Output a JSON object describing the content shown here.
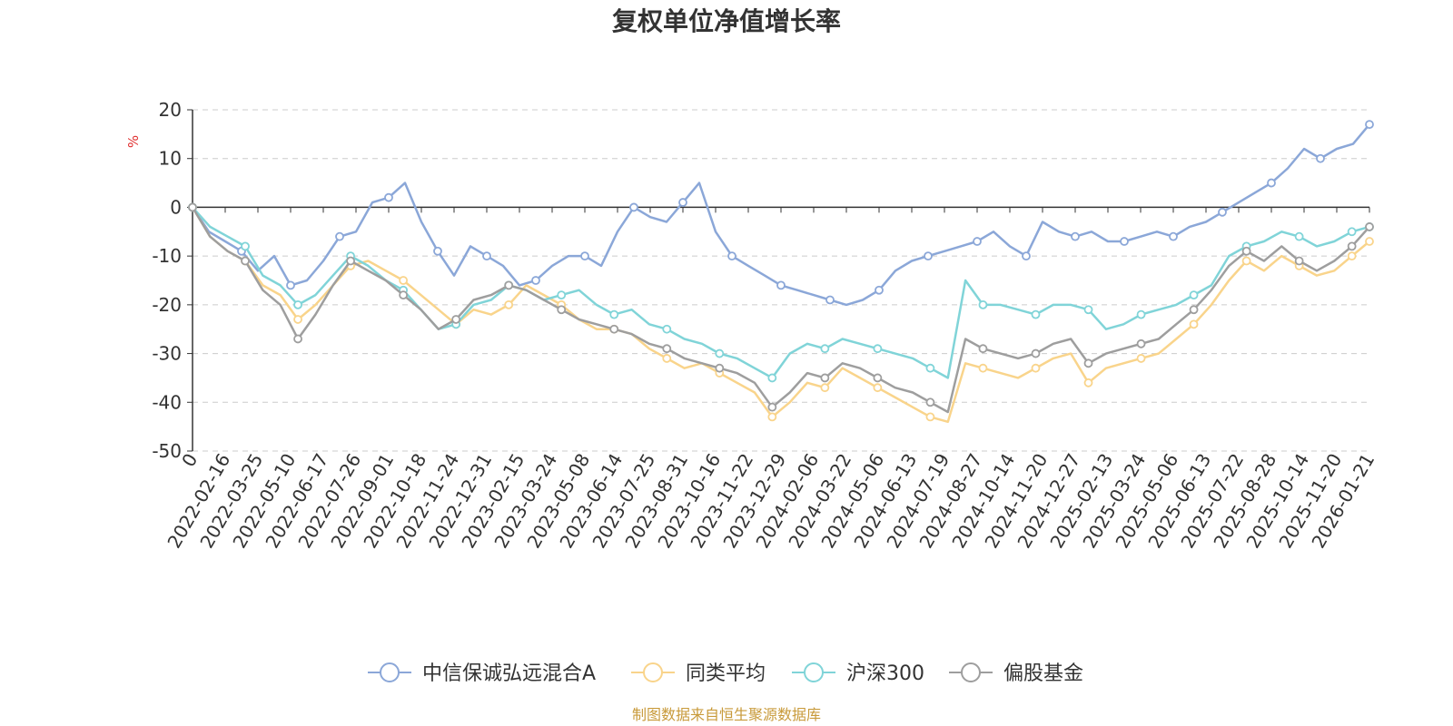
{
  "chart_data": {
    "type": "line",
    "title": "复权单位净值增长率",
    "ylabel": "%",
    "ylim": [
      -50,
      20
    ],
    "yticks": [
      20,
      10,
      0,
      -10,
      -20,
      -30,
      -40,
      -50
    ],
    "grid": true,
    "legend_position": "bottom-center",
    "source_note": "制图数据来自恒生聚源数据库",
    "x_tick_labels": [
      "0",
      "2022-02-16",
      "2022-03-25",
      "2022-05-10",
      "2022-06-17",
      "2022-07-26",
      "2022-09-01",
      "2022-10-18",
      "2022-11-24",
      "2022-12-31",
      "2023-02-15",
      "2023-03-24",
      "2023-05-08",
      "2023-06-14",
      "2023-07-25",
      "2023-08-31",
      "2023-10-16",
      "2023-11-22",
      "2023-12-29",
      "2024-02-06",
      "2024-03-22",
      "2024-05-06",
      "2024-06-13",
      "2024-07-19",
      "2024-08-27",
      "2024-10-14",
      "2024-11-20",
      "2024-12-27",
      "2025-02-13",
      "2025-03-24",
      "2025-05-06",
      "2025-06-13",
      "2025-07-22",
      "2025-08-28",
      "2025-10-14",
      "2025-11-20",
      "2026-01-21"
    ],
    "series": [
      {
        "name": "中信保诚弘远混合A",
        "color": "#8BA7D8",
        "values": [
          0,
          -5,
          -7,
          -9,
          -13,
          -10,
          -16,
          -15,
          -11,
          -6,
          -5,
          1,
          2,
          5,
          -3,
          -9,
          -14,
          -8,
          -10,
          -12,
          -16,
          -15,
          -12,
          -10,
          -10,
          -12,
          -5,
          0,
          -2,
          -3,
          1,
          5,
          -5,
          -10,
          -12,
          -14,
          -16,
          -17,
          -18,
          -19,
          -20,
          -19,
          -17,
          -13,
          -11,
          -10,
          -9,
          -8,
          -7,
          -5,
          -8,
          -10,
          -3,
          -5,
          -6,
          -5,
          -7,
          -7,
          -6,
          -5,
          -6,
          -4,
          -3,
          -1,
          1,
          3,
          5,
          8,
          12,
          10,
          12,
          13,
          17
        ]
      },
      {
        "name": "同类平均",
        "color": "#F9D48B",
        "values": [
          0,
          -6,
          -9,
          -11,
          -16,
          -18,
          -23,
          -20,
          -16,
          -12,
          -11,
          -13,
          -15,
          -18,
          -21,
          -24,
          -21,
          -22,
          -20,
          -16,
          -18,
          -20,
          -23,
          -25,
          -25,
          -26,
          -29,
          -31,
          -33,
          -32,
          -34,
          -36,
          -38,
          -43,
          -40,
          -36,
          -37,
          -33,
          -35,
          -37,
          -39,
          -41,
          -43,
          -44,
          -32,
          -33,
          -34,
          -35,
          -33,
          -31,
          -30,
          -36,
          -33,
          -32,
          -31,
          -30,
          -27,
          -24,
          -20,
          -15,
          -11,
          -13,
          -10,
          -12,
          -14,
          -13,
          -10,
          -7
        ]
      },
      {
        "name": "沪深300",
        "color": "#80D4D8",
        "values": [
          0,
          -4,
          -6,
          -8,
          -14,
          -16,
          -20,
          -18,
          -14,
          -10,
          -12,
          -15,
          -17,
          -21,
          -25,
          -24,
          -20,
          -19,
          -16,
          -17,
          -19,
          -18,
          -17,
          -20,
          -22,
          -21,
          -24,
          -25,
          -27,
          -28,
          -30,
          -31,
          -33,
          -35,
          -30,
          -28,
          -29,
          -27,
          -28,
          -29,
          -30,
          -31,
          -33,
          -35,
          -15,
          -20,
          -20,
          -21,
          -22,
          -20,
          -20,
          -21,
          -25,
          -24,
          -22,
          -21,
          -20,
          -18,
          -16,
          -10,
          -8,
          -7,
          -5,
          -6,
          -8,
          -7,
          -5,
          -4
        ]
      },
      {
        "name": "偏股基金",
        "color": "#9E9E9E",
        "values": [
          0,
          -6,
          -9,
          -11,
          -17,
          -20,
          -27,
          -22,
          -16,
          -11,
          -13,
          -15,
          -18,
          -21,
          -25,
          -23,
          -19,
          -18,
          -16,
          -17,
          -19,
          -21,
          -23,
          -24,
          -25,
          -26,
          -28,
          -29,
          -31,
          -32,
          -33,
          -34,
          -36,
          -41,
          -38,
          -34,
          -35,
          -32,
          -33,
          -35,
          -37,
          -38,
          -40,
          -42,
          -27,
          -29,
          -30,
          -31,
          -30,
          -28,
          -27,
          -32,
          -30,
          -29,
          -28,
          -27,
          -24,
          -21,
          -17,
          -12,
          -9,
          -11,
          -8,
          -11,
          -13,
          -11,
          -8,
          -4
        ]
      }
    ]
  }
}
